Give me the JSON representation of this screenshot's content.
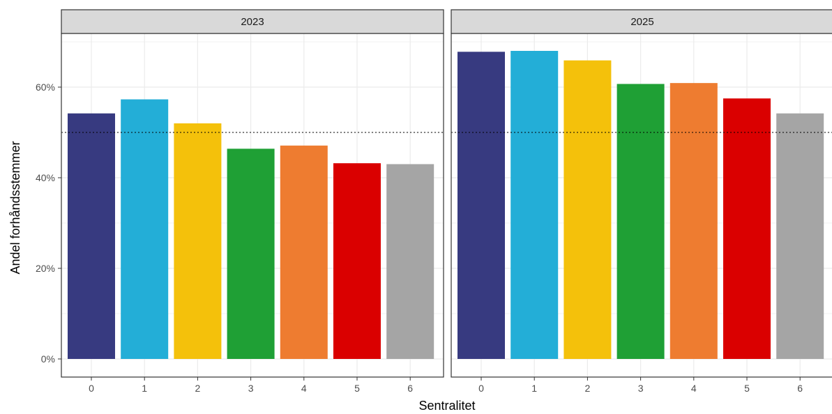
{
  "chart_data": {
    "type": "bar",
    "xlabel": "Sentralitet",
    "ylabel": "Andel forhåndsstemmer",
    "ylim": [
      0,
      0.72
    ],
    "yticks": [
      0,
      0.2,
      0.4,
      0.6
    ],
    "ytick_labels": [
      "0%",
      "20%",
      "40%",
      "60%"
    ],
    "reference_line": 0.5,
    "reference_line_style": "dotted",
    "grid": true,
    "categories": [
      "0",
      "1",
      "2",
      "3",
      "4",
      "5",
      "6"
    ],
    "colors": [
      "#373A80",
      "#23AED7",
      "#F4C10B",
      "#1FA035",
      "#EE7C30",
      "#DA0000",
      "#A5A5A5"
    ],
    "panels": [
      {
        "label": "2023",
        "values": [
          0.542,
          0.573,
          0.52,
          0.464,
          0.471,
          0.432,
          0.43
        ]
      },
      {
        "label": "2025",
        "values": [
          0.678,
          0.68,
          0.659,
          0.607,
          0.609,
          0.575,
          0.542
        ]
      }
    ]
  }
}
